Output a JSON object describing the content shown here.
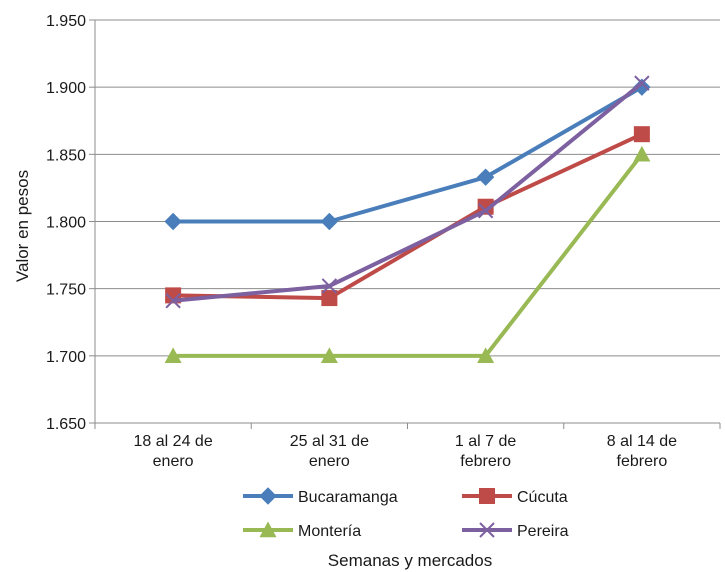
{
  "chart_data": {
    "type": "line",
    "title": "",
    "xlabel": "Semanas y mercados",
    "ylabel": "Valor en pesos",
    "categories": [
      "18 al 24 de enero",
      "25 al 31 de enero",
      "1 al 7 de febrero",
      "8 al 14 de febrero"
    ],
    "category_lines": [
      [
        "18 al 24 de",
        "enero"
      ],
      [
        "25 al 31 de",
        "enero"
      ],
      [
        "1 al 7 de",
        "febrero"
      ],
      [
        "8 al 14 de",
        "febrero"
      ]
    ],
    "ylim": [
      1650,
      1950
    ],
    "yticks": [
      1650,
      1700,
      1750,
      1800,
      1850,
      1900,
      1950
    ],
    "ytick_labels": [
      "1.650",
      "1.700",
      "1.750",
      "1.800",
      "1.850",
      "1.900",
      "1.950"
    ],
    "grid": true,
    "legend_position": "bottom",
    "series": [
      {
        "name": "Bucaramanga",
        "values": [
          1800,
          1800,
          1833,
          1900
        ],
        "color": "#4a7ebb",
        "marker": "diamond"
      },
      {
        "name": "Cúcuta",
        "values": [
          1745,
          1743,
          1811,
          1865
        ],
        "color": "#be4b48",
        "marker": "square"
      },
      {
        "name": "Montería",
        "values": [
          1700,
          1700,
          1700,
          1850
        ],
        "color": "#98b954",
        "marker": "triangle"
      },
      {
        "name": "Pereira",
        "values": [
          1741,
          1752,
          1808,
          1903
        ],
        "color": "#7d60a0",
        "marker": "x"
      }
    ]
  }
}
